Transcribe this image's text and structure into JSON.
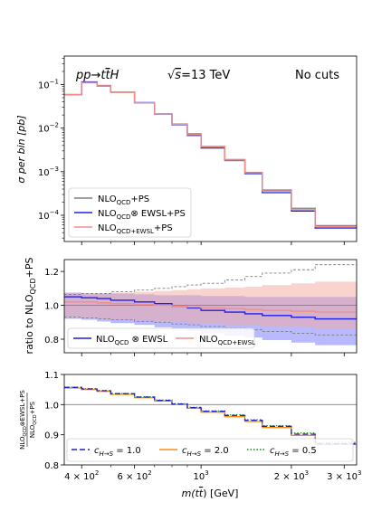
{
  "figure": {
    "header": {
      "process_pre": "pp→t",
      "process_tbar": "t",
      "process_post": "H",
      "sqrt_s": "=13 TeV",
      "cuts": "No cuts"
    },
    "xlabel_pre": "m(t",
    "xlabel_tbar": "t",
    "xlabel_post": ") [GeV]",
    "x_ticks": [
      {
        "value": 400,
        "base": "4 × 10",
        "exp": "2"
      },
      {
        "value": 600,
        "base": "6 × 10",
        "exp": "2"
      },
      {
        "value": 1000,
        "base": "10",
        "exp": "3"
      },
      {
        "value": 2000,
        "base": "2 × 10",
        "exp": "3"
      },
      {
        "value": 3000,
        "base": "3 × 10",
        "exp": "3"
      }
    ]
  },
  "colors": {
    "nlo_qcd_ps": "#808080",
    "nlo_qcd_x_ewsl_ps": "#1f1fe6",
    "nlo_qcd_plus_ewsl_ps": "#f0908a",
    "c10": "#1f1fd0",
    "c20": "#ff8c1a",
    "c05": "#2ca02c",
    "band_blue": "#8080ff",
    "band_salmon": "#f4a99e"
  },
  "chart_data": [
    {
      "type": "line",
      "panel": "top",
      "step": true,
      "xscale": "log",
      "yscale": "log",
      "xlim": [
        350,
        3300
      ],
      "ylim": [
        2.5e-05,
        0.45
      ],
      "ylabel": "σ per bin [pb]",
      "y_ticks": [
        {
          "value": 0.1,
          "base": "10",
          "exp": "−1"
        },
        {
          "value": 0.01,
          "base": "10",
          "exp": "−2"
        },
        {
          "value": 0.001,
          "base": "10",
          "exp": "−3"
        },
        {
          "value": 0.0001,
          "base": "10",
          "exp": "−4"
        }
      ],
      "bin_edges": [
        350,
        400,
        450,
        500,
        600,
        700,
        800,
        900,
        1000,
        1200,
        1400,
        1600,
        2000,
        2400,
        3300
      ],
      "series": [
        {
          "name_main": "NLO",
          "name_sub": "QCD",
          "name_rest": "+PS",
          "key": "nlo_qcd_ps",
          "values": [
            0.058,
            0.11,
            0.092,
            0.066,
            0.038,
            0.0215,
            0.0125,
            0.0074,
            0.0038,
            0.0019,
            0.00096,
            0.00038,
            0.000145,
            5.8e-05
          ]
        },
        {
          "name_main": "NLO",
          "name_sub": "QCD",
          "name_rest": "⊗ EWSL+PS",
          "key": "nlo_qcd_x_ewsl_ps",
          "values": [
            0.059,
            0.115,
            0.095,
            0.067,
            0.0385,
            0.021,
            0.012,
            0.0068,
            0.0035,
            0.0018,
            0.0009,
            0.00033,
            0.000125,
            5.1e-05
          ]
        },
        {
          "name_main": "NLO",
          "name_sub": "QCD+EWSL",
          "name_rest": "+PS",
          "key": "nlo_qcd_plus_ewsl_ps",
          "values": [
            0.0585,
            0.112,
            0.094,
            0.066,
            0.0382,
            0.0213,
            0.0123,
            0.0071,
            0.0037,
            0.00185,
            0.00094,
            0.00036,
            0.000135,
            5.5e-05
          ]
        }
      ],
      "legend": "lower-left"
    },
    {
      "type": "line",
      "panel": "middle",
      "step": true,
      "xscale": "log",
      "xlim": [
        350,
        3300
      ],
      "ylim": [
        0.72,
        1.27
      ],
      "ylabel_pre": "ratio to NLO",
      "ylabel_sub": "QCD",
      "ylabel_post": "+PS",
      "y_ticks": [
        {
          "value": 0.8,
          "label": "0.8"
        },
        {
          "value": 1.0,
          "label": "1.0"
        },
        {
          "value": 1.2,
          "label": "1.2"
        }
      ],
      "reference_line": 1.0,
      "bin_edges": [
        350,
        400,
        450,
        500,
        600,
        700,
        800,
        900,
        1000,
        1200,
        1400,
        1600,
        2000,
        2400,
        3300
      ],
      "gray_band_upper": [
        1.065,
        1.07,
        1.07,
        1.08,
        1.09,
        1.1,
        1.11,
        1.12,
        1.13,
        1.15,
        1.17,
        1.19,
        1.21,
        1.24
      ],
      "gray_band_lower": [
        0.93,
        0.925,
        0.92,
        0.915,
        0.905,
        0.9,
        0.89,
        0.885,
        0.875,
        0.865,
        0.855,
        0.845,
        0.835,
        0.825
      ],
      "series": [
        {
          "name_main": "NLO",
          "name_sub": "QCD",
          "name_rest": " ⊗ EWSL",
          "key": "nlo_qcd_x_ewsl_ps",
          "values": [
            1.05,
            1.045,
            1.04,
            1.03,
            1.02,
            1.01,
            0.995,
            0.985,
            0.97,
            0.96,
            0.95,
            0.94,
            0.93,
            0.92
          ],
          "band_upper": [
            1.075,
            1.07,
            1.07,
            1.07,
            1.065,
            1.06,
            1.06,
            1.06,
            1.055,
            1.055,
            1.05,
            1.05,
            1.05,
            1.05
          ],
          "band_lower": [
            0.92,
            0.915,
            0.905,
            0.895,
            0.885,
            0.87,
            0.86,
            0.85,
            0.835,
            0.82,
            0.81,
            0.795,
            0.78,
            0.765
          ]
        },
        {
          "name_main": "NLO",
          "name_sub": "QCD+EWSL",
          "name_rest": "",
          "key": "nlo_qcd_plus_ewsl_ps",
          "values": [
            1.02,
            1.02,
            1.015,
            1.01,
            1.005,
            1.0,
            0.995,
            0.99,
            0.985,
            0.98,
            0.975,
            0.97,
            0.965,
            0.96
          ],
          "band_upper": [
            1.07,
            1.07,
            1.07,
            1.075,
            1.08,
            1.085,
            1.09,
            1.095,
            1.1,
            1.105,
            1.11,
            1.12,
            1.13,
            1.14
          ],
          "band_lower": [
            0.93,
            0.925,
            0.92,
            0.915,
            0.91,
            0.905,
            0.9,
            0.895,
            0.89,
            0.885,
            0.88,
            0.875,
            0.87,
            0.86
          ]
        }
      ],
      "legend": "lower-center"
    },
    {
      "type": "line",
      "panel": "bottom",
      "step": true,
      "xscale": "log",
      "xlim": [
        350,
        3300
      ],
      "ylim": [
        0.8,
        1.1
      ],
      "ylabel_num_main": "NLO",
      "ylabel_num_sub": "QCD",
      "ylabel_num_rest": "⊗EWSL+PS",
      "ylabel_den_main": "NLO",
      "ylabel_den_sub": "QCD",
      "ylabel_den_rest": "+PS",
      "y_ticks": [
        {
          "value": 0.8,
          "label": "0.8"
        },
        {
          "value": 0.9,
          "label": "0.9"
        },
        {
          "value": 1.0,
          "label": "1.0"
        },
        {
          "value": 1.1,
          "label": "1.1"
        }
      ],
      "reference_line": 1.0,
      "bin_edges": [
        350,
        400,
        450,
        500,
        600,
        700,
        800,
        900,
        1000,
        1200,
        1400,
        1600,
        2000,
        2400,
        3300
      ],
      "series": [
        {
          "name_c": "c",
          "name_sub": "H→S",
          "name_val": " = 1.0",
          "key": "c10",
          "dash": "6,3",
          "values": [
            1.057,
            1.052,
            1.046,
            1.036,
            1.025,
            1.014,
            1.002,
            0.99,
            0.978,
            0.964,
            0.948,
            0.928,
            0.902,
            0.87
          ]
        },
        {
          "name_c": "c",
          "name_sub": "H→S",
          "name_val": " = 2.0",
          "key": "c20",
          "dash": "",
          "values": [
            1.055,
            1.05,
            1.044,
            1.034,
            1.023,
            1.012,
            1.0,
            0.988,
            0.975,
            0.96,
            0.944,
            0.924,
            0.898,
            0.868
          ]
        },
        {
          "name_c": "c",
          "name_sub": "H→S",
          "name_val": " = 0.5",
          "key": "c05",
          "dash": "1.5,2",
          "values": [
            1.058,
            1.053,
            1.047,
            1.037,
            1.026,
            1.015,
            1.003,
            0.991,
            0.979,
            0.966,
            0.95,
            0.93,
            0.906,
            0.874
          ]
        }
      ],
      "legend": "bottom"
    }
  ]
}
